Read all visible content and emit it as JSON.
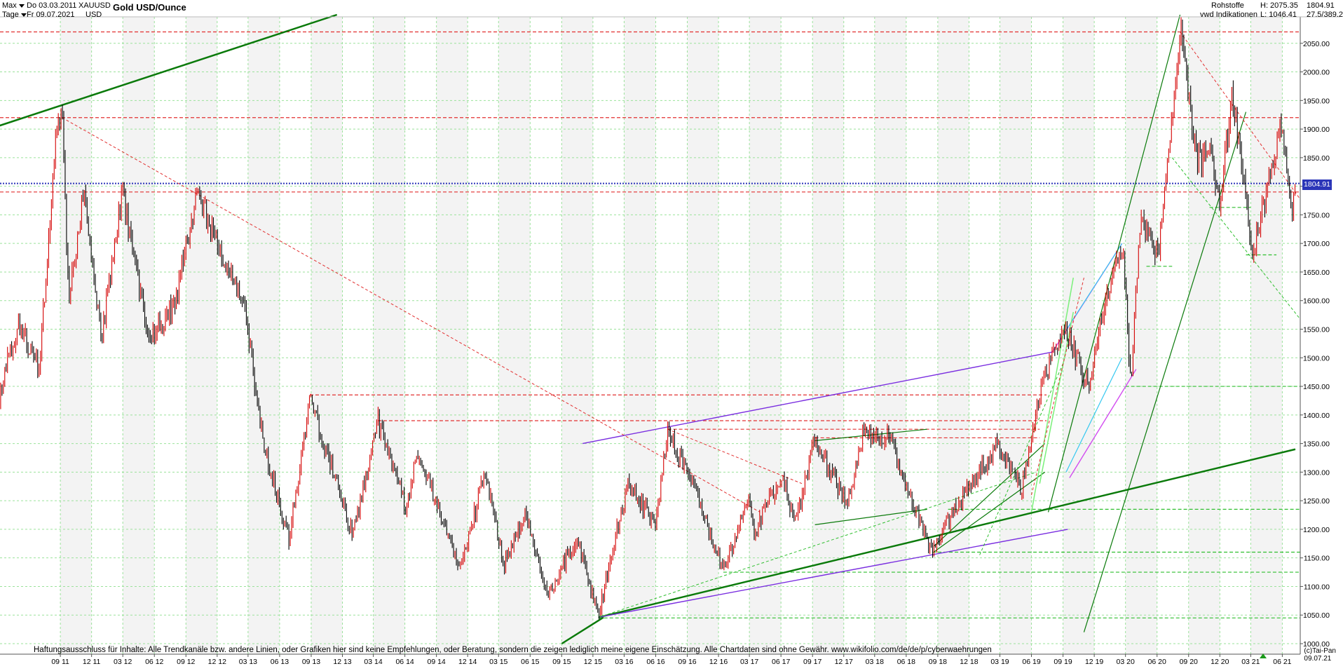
{
  "header": {
    "range_label": "Max",
    "period_label": "Tage",
    "date_from": "Do 03.03.2011",
    "date_to": "Fr 09.07.2021",
    "symbol": "XAUUSD",
    "currency": "USD",
    "title": "Gold USD/Ounce",
    "category": "Rohstoffe",
    "source": "vwd Indikationen",
    "high_label": "H: 2075.35",
    "low_label": "L: 1046.41",
    "last_value": "1804.91",
    "ratio": "27.5/389.2"
  },
  "price_tag": "1804.91",
  "footer": {
    "disclaimer": "Haftungsausschluss für Inhalte: Alle Trendkanäle bzw. andere Linien, oder Grafiken hier sind keine Empfehlungen, oder Beratung, sondern die zeigen lediglich meine eigene Einschätzung. Alle Chartdaten sind ohne Gewähr.  www.wikifolio.com/de/de/p/cyberwaehrungen",
    "copyright": "(c)Tai-Pan",
    "end_date": "09.07.21"
  },
  "colors": {
    "candle_up": "#d40000",
    "candle_down": "#000000",
    "trend_main": "#0a7a0a",
    "trend_channel": "#7a2ee0",
    "trend_light": "#7af07a",
    "support_dashed": "#2fbf2f",
    "resistance_dashed": "#e23030",
    "current_line": "#2b35b8",
    "grid": "#9be29b"
  },
  "chart_data": {
    "type": "candlestick",
    "title": "Gold USD/Ounce",
    "x_range": [
      "2011-03-03",
      "2021-07-09"
    ],
    "ylim": [
      1000,
      2100
    ],
    "y_scale": "linear",
    "grid": true,
    "y_ticks": [
      1000,
      1050,
      1100,
      1150,
      1200,
      1250,
      1300,
      1350,
      1400,
      1450,
      1500,
      1550,
      1600,
      1650,
      1700,
      1750,
      1800,
      1850,
      1900,
      1950,
      2000,
      2050
    ],
    "x_ticks": [
      "09 11",
      "12 11",
      "03 12",
      "06 12",
      "09 12",
      "12 12",
      "03 13",
      "06 13",
      "09 13",
      "12 13",
      "03 14",
      "06 14",
      "09 14",
      "12 14",
      "03 15",
      "06 15",
      "09 15",
      "12 15",
      "03 16",
      "06 16",
      "09 16",
      "12 16",
      "03 17",
      "06 17",
      "09 17",
      "12 17",
      "03 18",
      "06 18",
      "09 18",
      "12 18",
      "03 19",
      "06 19",
      "09 19",
      "12 19",
      "03 20",
      "06 20",
      "09 20",
      "12 20",
      "03 21",
      "06 21"
    ],
    "last_value": 1804.91,
    "high": 2075.35,
    "low": 1046.41,
    "series": [
      {
        "kind": "price_path",
        "points": [
          [
            "2011-03-03",
            1430
          ],
          [
            "2011-05-02",
            1560
          ],
          [
            "2011-06-30",
            1480
          ],
          [
            "2011-08-22",
            1900
          ],
          [
            "2011-09-06",
            1920
          ],
          [
            "2011-09-26",
            1600
          ],
          [
            "2011-11-08",
            1790
          ],
          [
            "2011-12-29",
            1530
          ],
          [
            "2012-02-28",
            1790
          ],
          [
            "2012-05-16",
            1530
          ],
          [
            "2012-08-01",
            1600
          ],
          [
            "2012-10-04",
            1790
          ],
          [
            "2012-12-31",
            1650
          ],
          [
            "2013-02-15",
            1600
          ],
          [
            "2013-04-15",
            1350
          ],
          [
            "2013-06-28",
            1180
          ],
          [
            "2013-08-28",
            1430
          ],
          [
            "2013-12-31",
            1190
          ],
          [
            "2014-03-14",
            1390
          ],
          [
            "2014-06-03",
            1240
          ],
          [
            "2014-07-10",
            1340
          ],
          [
            "2014-11-07",
            1130
          ],
          [
            "2015-01-22",
            1300
          ],
          [
            "2015-03-17",
            1140
          ],
          [
            "2015-05-18",
            1230
          ],
          [
            "2015-07-24",
            1080
          ],
          [
            "2015-10-15",
            1190
          ],
          [
            "2015-12-17",
            1050
          ],
          [
            "2016-03-11",
            1280
          ],
          [
            "2016-06-01",
            1210
          ],
          [
            "2016-07-06",
            1370
          ],
          [
            "2016-10-07",
            1250
          ],
          [
            "2016-12-15",
            1125
          ],
          [
            "2017-02-27",
            1260
          ],
          [
            "2017-03-15",
            1195
          ],
          [
            "2017-06-06",
            1295
          ],
          [
            "2017-07-10",
            1205
          ],
          [
            "2017-09-08",
            1355
          ],
          [
            "2017-12-12",
            1240
          ],
          [
            "2018-01-25",
            1365
          ],
          [
            "2018-04-11",
            1365
          ],
          [
            "2018-05-21",
            1290
          ],
          [
            "2018-08-16",
            1160
          ],
          [
            "2018-10-26",
            1240
          ],
          [
            "2019-02-20",
            1345
          ],
          [
            "2019-05-02",
            1270
          ],
          [
            "2019-06-25",
            1440
          ],
          [
            "2019-09-04",
            1555
          ],
          [
            "2019-11-12",
            1450
          ],
          [
            "2020-01-08",
            1610
          ],
          [
            "2020-02-24",
            1690
          ],
          [
            "2020-03-16",
            1450
          ],
          [
            "2020-04-14",
            1745
          ],
          [
            "2020-06-05",
            1680
          ],
          [
            "2020-08-07",
            2075
          ],
          [
            "2020-09-24",
            1850
          ],
          [
            "2020-11-09",
            1850
          ],
          [
            "2020-11-30",
            1765
          ],
          [
            "2021-01-06",
            1960
          ],
          [
            "2021-03-08",
            1680
          ],
          [
            "2021-06-01",
            1915
          ],
          [
            "2021-06-29",
            1755
          ],
          [
            "2021-07-09",
            1805
          ]
        ]
      }
    ],
    "horizontal_levels": [
      {
        "value": 2070,
        "style": "dashed",
        "color": "#e23030"
      },
      {
        "value": 1920,
        "style": "dashed",
        "color": "#e23030"
      },
      {
        "value": 1790,
        "style": "dashed",
        "color": "#e23030"
      },
      {
        "value": 1804.91,
        "style": "dotted",
        "color": "#2b35b8"
      },
      {
        "value": 1763,
        "style": "dashed",
        "color": "#2fbf2f",
        "from": "2020-11-01",
        "to": "2021-03-01"
      },
      {
        "value": 1680,
        "style": "dashed",
        "color": "#2fbf2f",
        "from": "2021-02-15",
        "to": "2021-05-15"
      },
      {
        "value": 1660,
        "style": "dashed",
        "color": "#2fbf2f",
        "from": "2020-05-01",
        "to": "2020-07-15"
      },
      {
        "value": 1450,
        "style": "dashed",
        "color": "#2fbf2f",
        "from": "2020-03-01"
      },
      {
        "value": 1435,
        "style": "dashed",
        "color": "#e23030",
        "from": "2013-08-28",
        "to": "2019-07-15"
      },
      {
        "value": 1390,
        "style": "dashed",
        "color": "#e23030",
        "from": "2014-03-14",
        "to": "2019-07-15"
      },
      {
        "value": 1375,
        "style": "dashed",
        "color": "#e23030",
        "from": "2016-07-06",
        "to": "2019-06-25"
      },
      {
        "value": 1360,
        "style": "dashed",
        "color": "#e23030",
        "from": "2017-09-08",
        "to": "2019-06-25"
      },
      {
        "value": 1235,
        "style": "dashed",
        "color": "#2fbf2f",
        "from": "2018-10-01"
      },
      {
        "value": 1160,
        "style": "dashed",
        "color": "#2fbf2f",
        "from": "2018-08-16"
      },
      {
        "value": 1125,
        "style": "dashed",
        "color": "#2fbf2f",
        "from": "2016-12-15"
      },
      {
        "value": 1045,
        "style": "dashed",
        "color": "#2fbf2f",
        "from": "2015-12-17"
      }
    ],
    "trend_lines": [
      {
        "from": [
          "2011-01-01",
          1893
        ],
        "to": [
          "2013-11-15",
          2100
        ],
        "color": "#0a7a0a",
        "width": 2.5
      },
      {
        "from": [
          "2015-12-17",
          1046
        ],
        "to": [
          "2021-07-09",
          1340
        ],
        "color": "#0a7a0a",
        "width": 2.5
      },
      {
        "from": [
          "2015-09-01",
          1000
        ],
        "to": [
          "2016-01-01",
          1046
        ],
        "color": "#0a7a0a",
        "width": 2.5
      },
      {
        "from": [
          "2015-11-01",
          1350
        ],
        "to": [
          "2019-08-01",
          1510
        ],
        "color": "#7a2ee0",
        "width": 1.4
      },
      {
        "from": [
          "2015-12-17",
          1046
        ],
        "to": [
          "2019-09-15",
          1200
        ],
        "color": "#7a2ee0",
        "width": 1.4
      },
      {
        "from": [
          "2019-08-01",
          1510
        ],
        "to": [
          "2020-02-20",
          1700
        ],
        "color": "#d24cf0",
        "width": 1.4
      },
      {
        "from": [
          "2019-09-20",
          1290
        ],
        "to": [
          "2020-04-01",
          1480
        ],
        "color": "#d24cf0",
        "width": 1.4
      },
      {
        "from": [
          "2019-09-01",
          1540
        ],
        "to": [
          "2020-02-20",
          1700
        ],
        "color": "#34c8f0",
        "width": 1.2
      },
      {
        "from": [
          "2019-09-10",
          1300
        ],
        "to": [
          "2020-02-20",
          1500
        ],
        "color": "#34c8f0",
        "width": 1.2
      },
      {
        "from": [
          "2019-07-20",
          1230
        ],
        "to": [
          "2020-08-07",
          2100
        ],
        "color": "#0a7a0a",
        "width": 1.2
      },
      {
        "from": [
          "2019-11-01",
          1020
        ],
        "to": [
          "2021-02-15",
          1930
        ],
        "color": "#0a7a0a",
        "width": 1.2
      },
      {
        "from": [
          "2017-09-08",
          1355
        ],
        "to": [
          "2018-08-01",
          1375
        ],
        "color": "#0a7a0a",
        "width": 1.2
      },
      {
        "from": [
          "2017-09-08",
          1208
        ],
        "to": [
          "2018-08-01",
          1235
        ],
        "color": "#0a7a0a",
        "width": 1.2
      },
      {
        "from": [
          "2018-08-20",
          1170
        ],
        "to": [
          "2019-07-10",
          1350
        ],
        "color": "#0a7a0a",
        "width": 1.2
      },
      {
        "from": [
          "2018-08-20",
          1160
        ],
        "to": [
          "2019-07-10",
          1300
        ],
        "color": "#0a7a0a",
        "width": 1.2
      },
      {
        "from": [
          "2019-06-01",
          1230
        ],
        "to": [
          "2019-10-01",
          1640
        ],
        "color": "#7af07a",
        "width": 1.5
      },
      {
        "from": [
          "2019-06-25",
          1280
        ],
        "to": [
          "2019-10-01",
          1580
        ],
        "color": "#7af07a",
        "width": 1.5
      }
    ],
    "dashed_trend_lines": [
      {
        "from": [
          "2011-09-06",
          1920
        ],
        "to": [
          "2017-04-01",
          1230
        ],
        "color": "#e23030"
      },
      {
        "from": [
          "2016-07-06",
          1375
        ],
        "to": [
          "2017-08-01",
          1280
        ],
        "color": "#e23030"
      },
      {
        "from": [
          "2020-08-07",
          2070
        ],
        "to": [
          "2021-07-20",
          1780
        ],
        "color": "#e23030"
      },
      {
        "from": [
          "2020-07-15",
          1850
        ],
        "to": [
          "2021-07-20",
          1570
        ],
        "color": "#2fbf2f"
      },
      {
        "from": [
          "2015-12-17",
          1046
        ],
        "to": [
          "2019-06-15",
          1300
        ],
        "color": "#2fbf2f"
      },
      {
        "from": [
          "2019-01-01",
          1155
        ],
        "to": [
          "2019-09-01",
          1490
        ],
        "color": "#2fbf2f"
      },
      {
        "from": [
          "2019-06-01",
          1260
        ],
        "to": [
          "2019-11-01",
          1640
        ],
        "color": "#e23030"
      }
    ]
  }
}
